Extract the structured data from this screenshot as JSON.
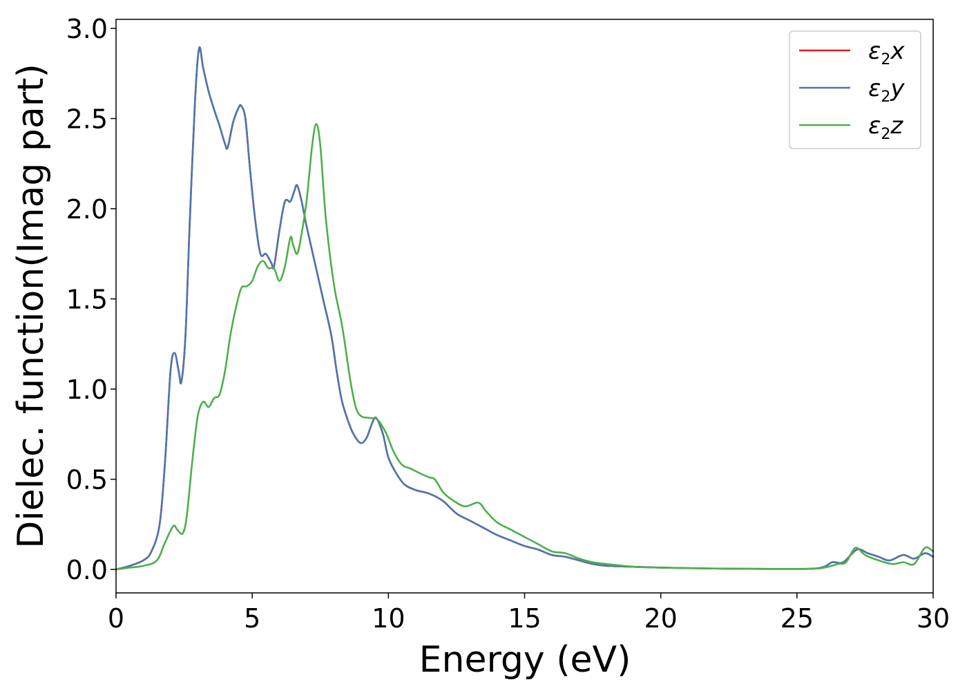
{
  "chart_data": {
    "type": "line",
    "title": "",
    "xlabel": "Energy (eV)",
    "ylabel": "Dielec. function(Imag part)",
    "xlim": [
      0,
      30
    ],
    "ylim": [
      -0.13,
      3.05
    ],
    "xticks": [
      0,
      5,
      10,
      15,
      20,
      25,
      30
    ],
    "xtick_labels": [
      "0",
      "5",
      "10",
      "15",
      "20",
      "25",
      "30"
    ],
    "yticks": [
      0.0,
      0.5,
      1.0,
      1.5,
      2.0,
      2.5,
      3.0
    ],
    "ytick_labels": [
      "0.0",
      "0.5",
      "1.0",
      "1.5",
      "2.0",
      "2.5",
      "3.0"
    ],
    "grid": false,
    "legend_position": "top-right",
    "series": [
      {
        "name": "ε2x",
        "legend_base": "ε",
        "legend_sub": "2",
        "legend_suffix": "x",
        "color": "#e41a1c",
        "points": [
          [
            0,
            0
          ],
          [
            0.5,
            0.02
          ],
          [
            1,
            0.05
          ],
          [
            1.3,
            0.1
          ],
          [
            1.6,
            0.25
          ],
          [
            1.8,
            0.6
          ],
          [
            2.0,
            1.1
          ],
          [
            2.15,
            1.2
          ],
          [
            2.3,
            1.1
          ],
          [
            2.4,
            1.04
          ],
          [
            2.55,
            1.3
          ],
          [
            2.7,
            1.9
          ],
          [
            2.9,
            2.6
          ],
          [
            3.05,
            2.89
          ],
          [
            3.2,
            2.78
          ],
          [
            3.4,
            2.65
          ],
          [
            3.6,
            2.55
          ],
          [
            3.8,
            2.46
          ],
          [
            4.0,
            2.36
          ],
          [
            4.1,
            2.34
          ],
          [
            4.3,
            2.48
          ],
          [
            4.5,
            2.56
          ],
          [
            4.6,
            2.57
          ],
          [
            4.75,
            2.5
          ],
          [
            4.9,
            2.25
          ],
          [
            5.1,
            1.95
          ],
          [
            5.3,
            1.75
          ],
          [
            5.5,
            1.75
          ],
          [
            5.7,
            1.7
          ],
          [
            5.8,
            1.68
          ],
          [
            6.0,
            1.88
          ],
          [
            6.2,
            2.04
          ],
          [
            6.4,
            2.04
          ],
          [
            6.55,
            2.1
          ],
          [
            6.65,
            2.13
          ],
          [
            6.8,
            2.05
          ],
          [
            7.0,
            1.9
          ],
          [
            7.3,
            1.7
          ],
          [
            7.6,
            1.5
          ],
          [
            7.9,
            1.3
          ],
          [
            8.1,
            1.1
          ],
          [
            8.3,
            0.93
          ],
          [
            8.6,
            0.79
          ],
          [
            8.8,
            0.73
          ],
          [
            9.0,
            0.7
          ],
          [
            9.2,
            0.73
          ],
          [
            9.4,
            0.81
          ],
          [
            9.55,
            0.84
          ],
          [
            9.8,
            0.75
          ],
          [
            10.0,
            0.62
          ],
          [
            10.3,
            0.53
          ],
          [
            10.6,
            0.47
          ],
          [
            11.0,
            0.44
          ],
          [
            11.5,
            0.42
          ],
          [
            12.0,
            0.38
          ],
          [
            12.5,
            0.31
          ],
          [
            13.0,
            0.27
          ],
          [
            13.5,
            0.23
          ],
          [
            14.0,
            0.19
          ],
          [
            14.5,
            0.16
          ],
          [
            15.0,
            0.13
          ],
          [
            15.5,
            0.11
          ],
          [
            16.0,
            0.08
          ],
          [
            16.5,
            0.07
          ],
          [
            17.0,
            0.05
          ],
          [
            17.5,
            0.03
          ],
          [
            18.0,
            0.02
          ],
          [
            19.0,
            0.015
          ],
          [
            20.0,
            0.01
          ],
          [
            22.0,
            0.005
          ],
          [
            24.0,
            0.003
          ],
          [
            25.5,
            0.004
          ],
          [
            26.0,
            0.015
          ],
          [
            26.3,
            0.04
          ],
          [
            26.7,
            0.04
          ],
          [
            27.2,
            0.11
          ],
          [
            27.6,
            0.09
          ],
          [
            28.0,
            0.07
          ],
          [
            28.4,
            0.05
          ],
          [
            28.9,
            0.08
          ],
          [
            29.3,
            0.06
          ],
          [
            29.7,
            0.09
          ],
          [
            30.0,
            0.07
          ]
        ]
      },
      {
        "name": "ε2y",
        "legend_base": "ε",
        "legend_sub": "2",
        "legend_suffix": "y",
        "color": "#4a78b0",
        "points": [
          [
            0,
            0
          ],
          [
            0.5,
            0.02
          ],
          [
            1,
            0.05
          ],
          [
            1.3,
            0.1
          ],
          [
            1.6,
            0.25
          ],
          [
            1.8,
            0.6
          ],
          [
            2.0,
            1.1
          ],
          [
            2.15,
            1.2
          ],
          [
            2.3,
            1.1
          ],
          [
            2.4,
            1.04
          ],
          [
            2.55,
            1.3
          ],
          [
            2.7,
            1.9
          ],
          [
            2.9,
            2.6
          ],
          [
            3.05,
            2.89
          ],
          [
            3.2,
            2.78
          ],
          [
            3.4,
            2.65
          ],
          [
            3.6,
            2.55
          ],
          [
            3.8,
            2.46
          ],
          [
            4.0,
            2.36
          ],
          [
            4.1,
            2.34
          ],
          [
            4.3,
            2.48
          ],
          [
            4.5,
            2.56
          ],
          [
            4.6,
            2.57
          ],
          [
            4.75,
            2.5
          ],
          [
            4.9,
            2.25
          ],
          [
            5.1,
            1.95
          ],
          [
            5.3,
            1.75
          ],
          [
            5.5,
            1.75
          ],
          [
            5.7,
            1.7
          ],
          [
            5.8,
            1.68
          ],
          [
            6.0,
            1.88
          ],
          [
            6.2,
            2.04
          ],
          [
            6.4,
            2.04
          ],
          [
            6.55,
            2.1
          ],
          [
            6.65,
            2.13
          ],
          [
            6.8,
            2.05
          ],
          [
            7.0,
            1.9
          ],
          [
            7.3,
            1.7
          ],
          [
            7.6,
            1.5
          ],
          [
            7.9,
            1.3
          ],
          [
            8.1,
            1.1
          ],
          [
            8.3,
            0.93
          ],
          [
            8.6,
            0.79
          ],
          [
            8.8,
            0.73
          ],
          [
            9.0,
            0.7
          ],
          [
            9.2,
            0.73
          ],
          [
            9.4,
            0.81
          ],
          [
            9.55,
            0.84
          ],
          [
            9.8,
            0.75
          ],
          [
            10.0,
            0.62
          ],
          [
            10.3,
            0.53
          ],
          [
            10.6,
            0.47
          ],
          [
            11.0,
            0.44
          ],
          [
            11.5,
            0.42
          ],
          [
            12.0,
            0.38
          ],
          [
            12.5,
            0.31
          ],
          [
            13.0,
            0.27
          ],
          [
            13.5,
            0.23
          ],
          [
            14.0,
            0.19
          ],
          [
            14.5,
            0.16
          ],
          [
            15.0,
            0.13
          ],
          [
            15.5,
            0.11
          ],
          [
            16.0,
            0.08
          ],
          [
            16.5,
            0.07
          ],
          [
            17.0,
            0.05
          ],
          [
            17.5,
            0.03
          ],
          [
            18.0,
            0.02
          ],
          [
            19.0,
            0.015
          ],
          [
            20.0,
            0.01
          ],
          [
            22.0,
            0.005
          ],
          [
            24.0,
            0.003
          ],
          [
            25.5,
            0.004
          ],
          [
            26.0,
            0.015
          ],
          [
            26.3,
            0.04
          ],
          [
            26.7,
            0.04
          ],
          [
            27.2,
            0.11
          ],
          [
            27.6,
            0.09
          ],
          [
            28.0,
            0.07
          ],
          [
            28.4,
            0.05
          ],
          [
            28.9,
            0.08
          ],
          [
            29.3,
            0.06
          ],
          [
            29.7,
            0.09
          ],
          [
            30.0,
            0.07
          ]
        ]
      },
      {
        "name": "ε2z",
        "legend_base": "ε",
        "legend_sub": "2",
        "legend_suffix": "z",
        "color": "#4daf4a",
        "points": [
          [
            0,
            0
          ],
          [
            0.5,
            0.01
          ],
          [
            1,
            0.02
          ],
          [
            1.5,
            0.05
          ],
          [
            1.8,
            0.15
          ],
          [
            2.1,
            0.24
          ],
          [
            2.25,
            0.22
          ],
          [
            2.45,
            0.2
          ],
          [
            2.6,
            0.3
          ],
          [
            2.8,
            0.6
          ],
          [
            3.0,
            0.85
          ],
          [
            3.2,
            0.93
          ],
          [
            3.4,
            0.9
          ],
          [
            3.6,
            0.95
          ],
          [
            3.8,
            0.97
          ],
          [
            4.0,
            1.1
          ],
          [
            4.2,
            1.3
          ],
          [
            4.4,
            1.45
          ],
          [
            4.6,
            1.56
          ],
          [
            4.8,
            1.57
          ],
          [
            5.0,
            1.6
          ],
          [
            5.2,
            1.68
          ],
          [
            5.4,
            1.71
          ],
          [
            5.6,
            1.67
          ],
          [
            5.8,
            1.67
          ],
          [
            6.0,
            1.6
          ],
          [
            6.2,
            1.68
          ],
          [
            6.4,
            1.84
          ],
          [
            6.5,
            1.8
          ],
          [
            6.65,
            1.75
          ],
          [
            6.8,
            1.85
          ],
          [
            7.0,
            2.05
          ],
          [
            7.2,
            2.35
          ],
          [
            7.35,
            2.47
          ],
          [
            7.5,
            2.35
          ],
          [
            7.7,
            1.95
          ],
          [
            8.0,
            1.58
          ],
          [
            8.3,
            1.35
          ],
          [
            8.6,
            1.05
          ],
          [
            8.8,
            0.9
          ],
          [
            9.0,
            0.85
          ],
          [
            9.3,
            0.84
          ],
          [
            9.6,
            0.83
          ],
          [
            9.9,
            0.76
          ],
          [
            10.2,
            0.65
          ],
          [
            10.5,
            0.58
          ],
          [
            10.8,
            0.56
          ],
          [
            11.2,
            0.53
          ],
          [
            11.5,
            0.51
          ],
          [
            11.7,
            0.5
          ],
          [
            12.0,
            0.43
          ],
          [
            12.3,
            0.39
          ],
          [
            12.8,
            0.35
          ],
          [
            13.3,
            0.37
          ],
          [
            13.6,
            0.32
          ],
          [
            14.0,
            0.26
          ],
          [
            14.5,
            0.22
          ],
          [
            15.0,
            0.18
          ],
          [
            15.5,
            0.14
          ],
          [
            16.0,
            0.1
          ],
          [
            16.5,
            0.09
          ],
          [
            17.0,
            0.06
          ],
          [
            17.5,
            0.04
          ],
          [
            18.0,
            0.03
          ],
          [
            19.0,
            0.015
          ],
          [
            20.0,
            0.01
          ],
          [
            22.0,
            0.005
          ],
          [
            24.0,
            0.003
          ],
          [
            25.5,
            0.004
          ],
          [
            26.0,
            0.01
          ],
          [
            26.5,
            0.03
          ],
          [
            26.8,
            0.04
          ],
          [
            27.15,
            0.12
          ],
          [
            27.5,
            0.08
          ],
          [
            28.0,
            0.05
          ],
          [
            28.5,
            0.03
          ],
          [
            28.9,
            0.04
          ],
          [
            29.3,
            0.03
          ],
          [
            29.7,
            0.12
          ],
          [
            30.0,
            0.1
          ]
        ]
      }
    ]
  }
}
